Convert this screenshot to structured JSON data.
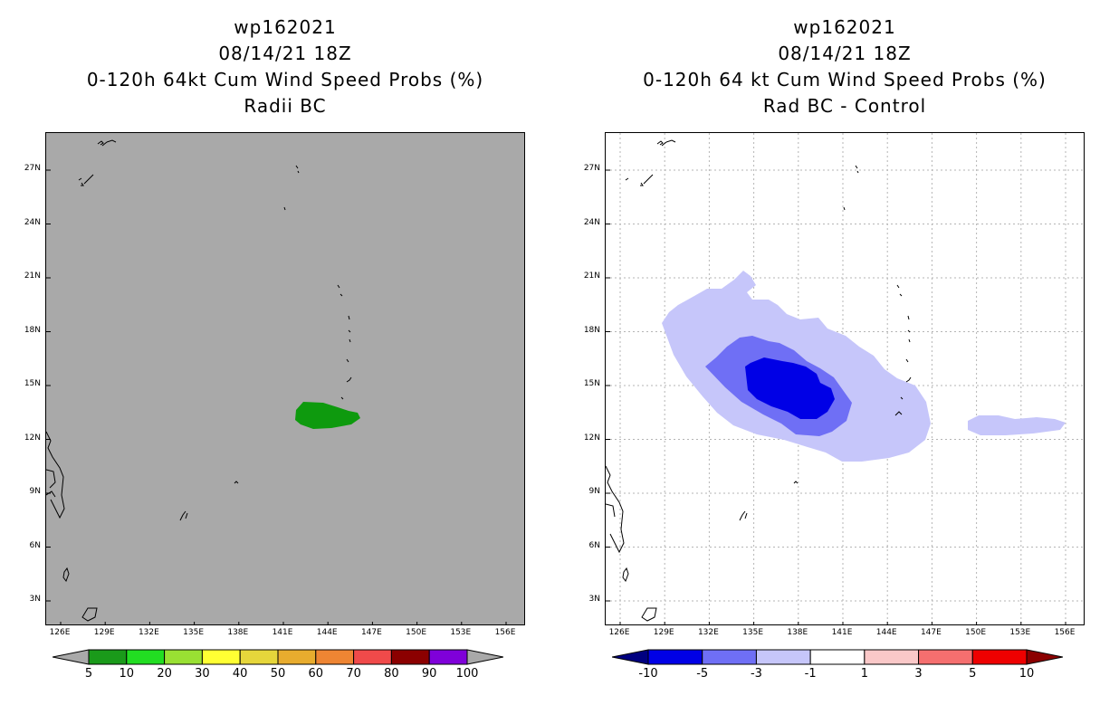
{
  "left": {
    "storm": "wp162021",
    "date": "08/14/21 18Z",
    "product": "0-120h 64kt Cum Wind Speed Probs (%)",
    "subtitle": "Radii BC",
    "lat_labels": [
      "27N",
      "24N",
      "21N",
      "18N",
      "15N",
      "12N",
      "9N",
      "6N",
      "3N"
    ],
    "lon_labels": [
      "126E",
      "129E",
      "132E",
      "135E",
      "138E",
      "141E",
      "144E",
      "147E",
      "150E",
      "153E",
      "156E"
    ],
    "legend": {
      "labels": [
        "5",
        "10",
        "20",
        "30",
        "40",
        "50",
        "60",
        "70",
        "80",
        "90",
        "100"
      ],
      "colors": [
        "#1a9a1a",
        "#22dd22",
        "#99e033",
        "#ffff33",
        "#e6d63b",
        "#e8ac2e",
        "#ee8533",
        "#f04a4a",
        "#8b0000",
        "#7f00d9"
      ],
      "end_color": "#a9a9a9"
    }
  },
  "right": {
    "storm": "wp162021",
    "date": "08/14/21 18Z",
    "product": "0-120h 64 kt Cum Wind Speed Probs (%)",
    "subtitle": "Rad BC - Control",
    "lat_labels": [
      "27N",
      "24N",
      "21N",
      "18N",
      "15N",
      "12N",
      "9N",
      "6N",
      "3N"
    ],
    "lon_labels": [
      "126E",
      "129E",
      "132E",
      "135E",
      "138E",
      "141E",
      "144E",
      "147E",
      "150E",
      "153E",
      "156E"
    ],
    "legend": {
      "labels": [
        "-10",
        "-5",
        "-3",
        "-1",
        "1",
        "3",
        "5",
        "10"
      ],
      "colors": [
        "#0000e6",
        "#6f6ff5",
        "#c6c6fa",
        "#ffffff",
        "#fac8c8",
        "#f56f6f",
        "#ee0000"
      ],
      "end_low": "#000080",
      "end_high": "#8b0000"
    }
  },
  "colors": {
    "prob_fill": "#0e9a0e",
    "diff_light": "#c6c6fa",
    "diff_mid": "#6f6ff5",
    "diff_dark": "#0000e6",
    "gray_bg": "#a9a9a9"
  }
}
